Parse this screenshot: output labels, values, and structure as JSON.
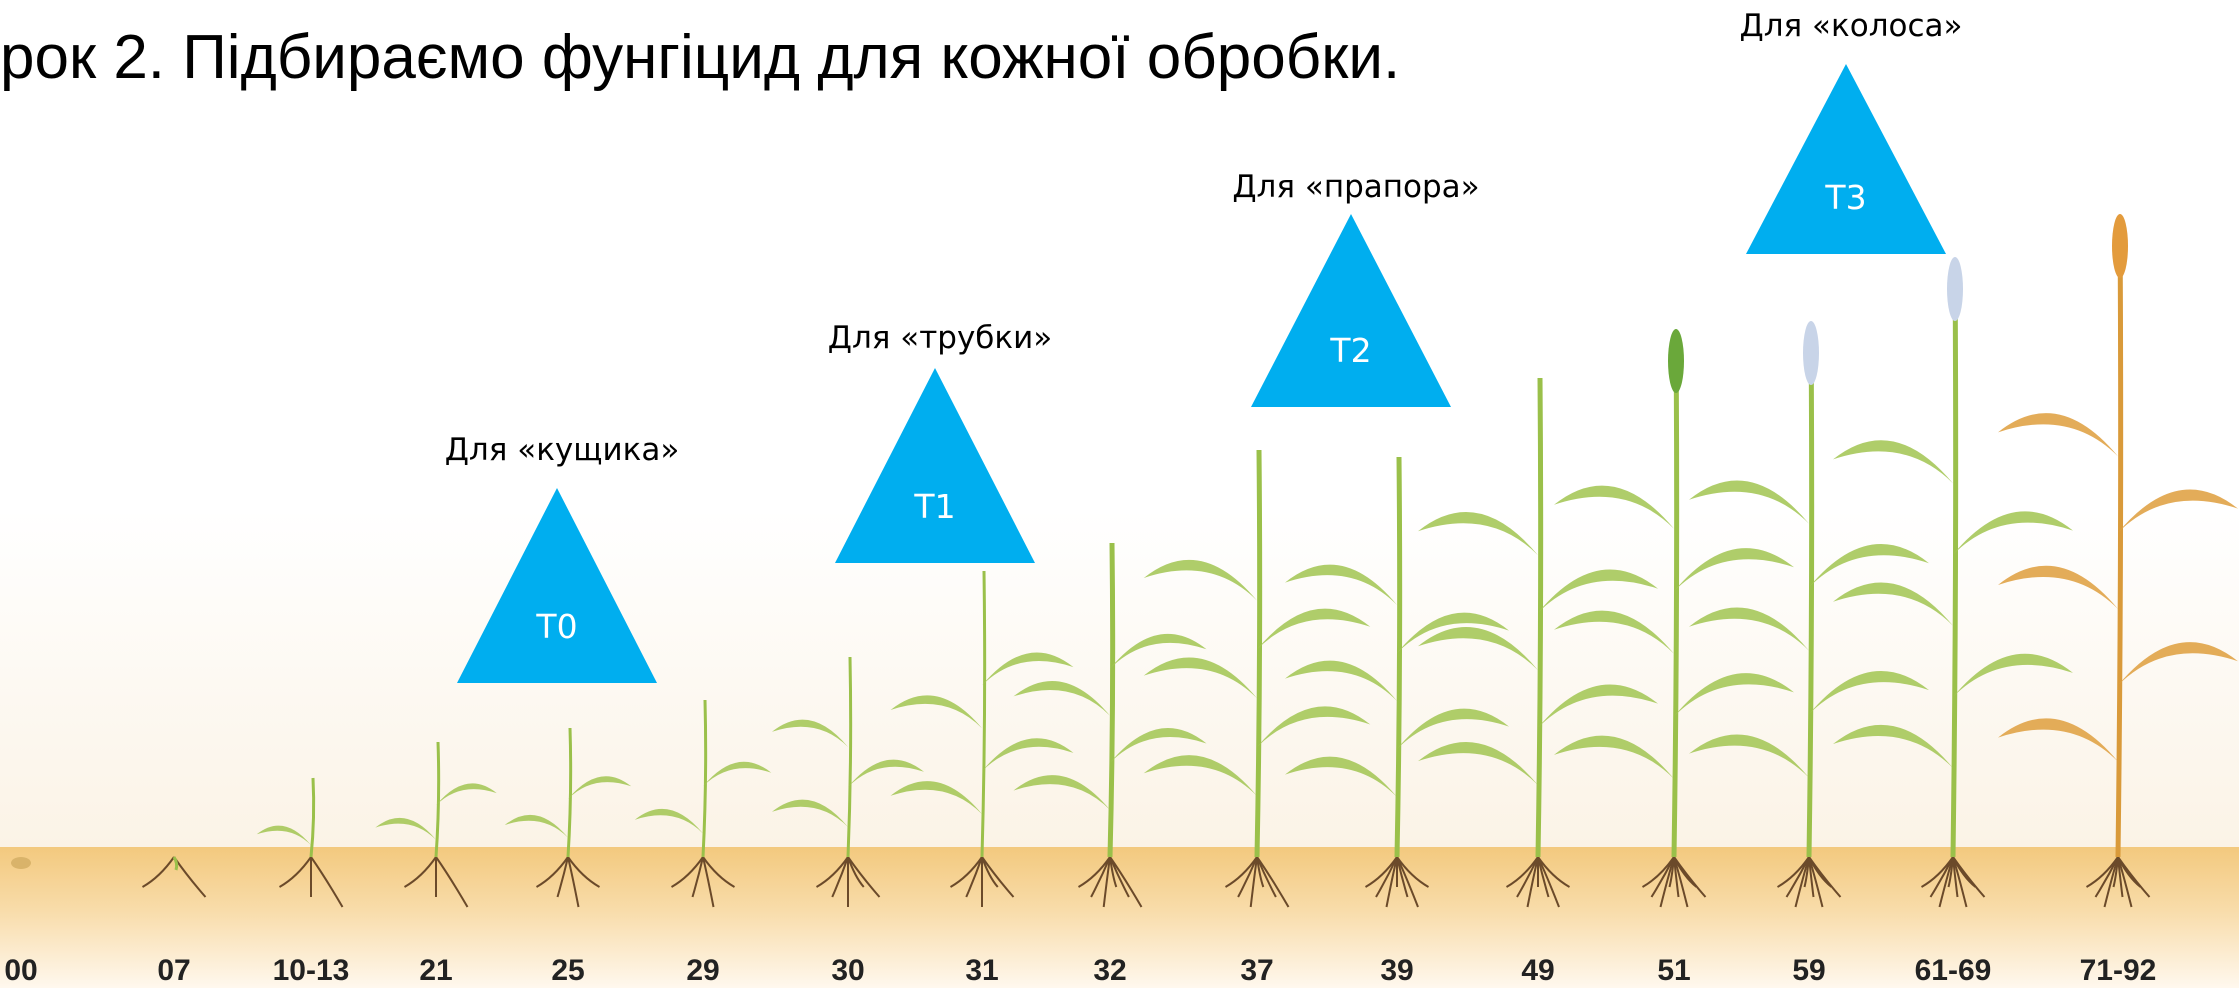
{
  "header": {
    "title": "рок 2. Підбираємо фунгіцид для кожної обробки."
  },
  "treatments": [
    {
      "label": "T0",
      "caption": "Для «кущика»"
    },
    {
      "label": "T1",
      "caption": "Для «трубки»"
    },
    {
      "label": "T2",
      "caption": "Для «прапора»"
    },
    {
      "label": "T3",
      "caption": "Для «колоса»"
    }
  ],
  "stages": [
    "00",
    "07",
    "10-13",
    "21",
    "25",
    "29",
    "30",
    "31",
    "32",
    "37",
    "39",
    "49",
    "51",
    "59",
    "61-69",
    "71-92"
  ]
}
